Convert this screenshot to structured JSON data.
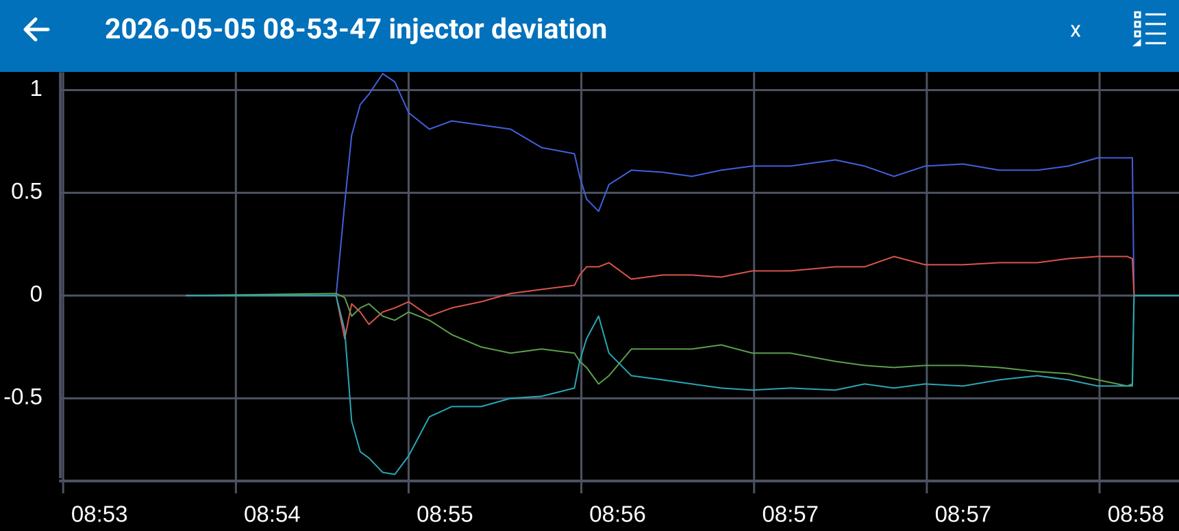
{
  "header": {
    "title": "2026-05-05 08-53-47 injector deviation",
    "close_button": "x"
  },
  "chart_data": {
    "type": "line",
    "x": [
      0.71,
      1.58,
      1.63,
      1.67,
      1.72,
      1.77,
      1.85,
      1.92,
      2.0,
      2.12,
      2.25,
      2.42,
      2.59,
      2.77,
      2.96,
      2.99,
      3.03,
      3.1,
      3.16,
      3.29,
      3.47,
      3.64,
      3.81,
      3.99,
      4.21,
      4.47,
      4.64,
      4.81,
      4.99,
      5.21,
      5.42,
      5.64,
      5.82,
      5.99,
      6.16,
      6.19,
      6.2,
      6.46
    ],
    "series": [
      {
        "color": "#4060dc",
        "values": [
          0,
          0,
          0.45,
          0.78,
          0.93,
          0.98,
          1.08,
          1.04,
          0.89,
          0.81,
          0.85,
          0.83,
          0.81,
          0.72,
          0.69,
          0.58,
          0.47,
          0.41,
          0.54,
          0.61,
          0.6,
          0.58,
          0.61,
          0.63,
          0.63,
          0.66,
          0.63,
          0.58,
          0.63,
          0.64,
          0.61,
          0.61,
          0.63,
          0.67,
          0.67,
          0.67,
          0,
          0
        ]
      },
      {
        "color": "#d9544a",
        "values": [
          0,
          0,
          -0.21,
          -0.04,
          -0.08,
          -0.14,
          -0.08,
          -0.06,
          -0.03,
          -0.1,
          -0.06,
          -0.03,
          0.01,
          0.03,
          0.05,
          0.1,
          0.14,
          0.14,
          0.16,
          0.08,
          0.1,
          0.1,
          0.09,
          0.12,
          0.12,
          0.14,
          0.14,
          0.19,
          0.15,
          0.15,
          0.16,
          0.16,
          0.18,
          0.19,
          0.19,
          0.18,
          0,
          0
        ]
      },
      {
        "color": "#5b9f4c",
        "values": [
          0,
          0.01,
          -0.01,
          -0.1,
          -0.06,
          -0.04,
          -0.1,
          -0.12,
          -0.08,
          -0.12,
          -0.19,
          -0.25,
          -0.28,
          -0.26,
          -0.28,
          -0.32,
          -0.35,
          -0.43,
          -0.39,
          -0.26,
          -0.26,
          -0.26,
          -0.24,
          -0.28,
          -0.28,
          -0.32,
          -0.34,
          -0.35,
          -0.34,
          -0.34,
          -0.35,
          -0.37,
          -0.38,
          -0.41,
          -0.44,
          -0.43,
          0,
          0
        ]
      },
      {
        "color": "#2aa6b6",
        "values": [
          0,
          0,
          -0.17,
          -0.61,
          -0.76,
          -0.79,
          -0.86,
          -0.87,
          -0.78,
          -0.59,
          -0.54,
          -0.54,
          -0.5,
          -0.49,
          -0.45,
          -0.32,
          -0.21,
          -0.1,
          -0.28,
          -0.39,
          -0.41,
          -0.43,
          -0.45,
          -0.46,
          -0.45,
          -0.46,
          -0.43,
          -0.45,
          -0.43,
          -0.44,
          -0.41,
          -0.39,
          -0.41,
          -0.44,
          -0.44,
          -0.44,
          0,
          0
        ]
      }
    ],
    "xlim": [
      0,
      6.46
    ],
    "xticks": [
      {
        "value": 0,
        "label": "08:53"
      },
      {
        "value": 1,
        "label": "08:54"
      },
      {
        "value": 2,
        "label": "08:55"
      },
      {
        "value": 3,
        "label": "08:56"
      },
      {
        "value": 4,
        "label": "08:57"
      },
      {
        "value": 5,
        "label": "08:57"
      },
      {
        "value": 6,
        "label": "08:58"
      }
    ],
    "ylim": [
      -0.889,
      1.087
    ],
    "yticks": [
      -0.5,
      0,
      0.5,
      1
    ],
    "grid": true
  }
}
